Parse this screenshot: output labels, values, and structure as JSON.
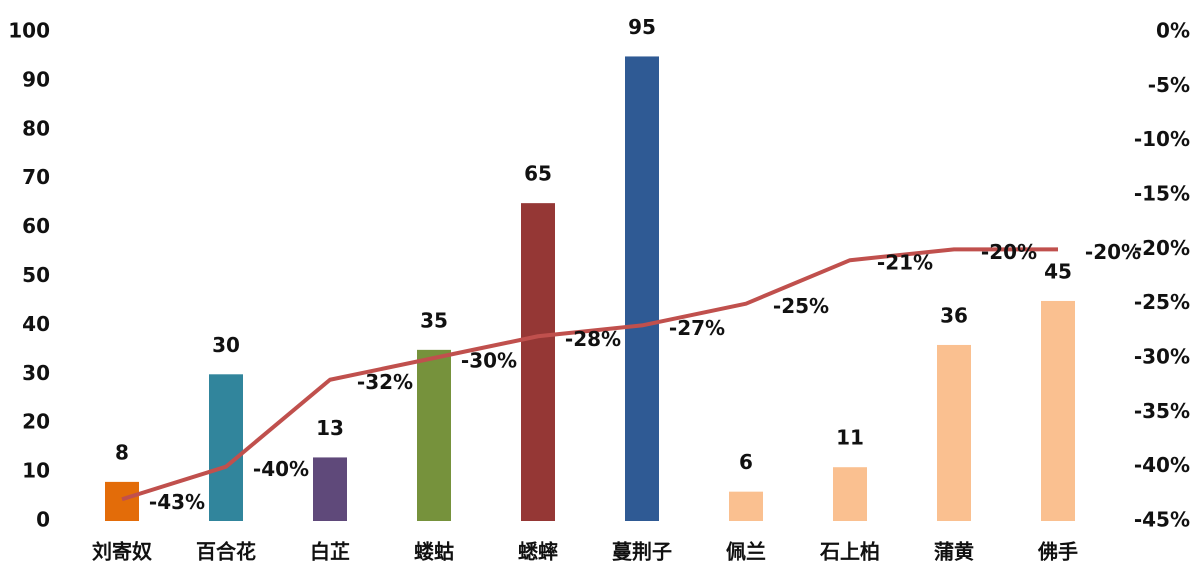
{
  "chart_data": {
    "type": "combo",
    "categories": [
      "刘寄奴",
      "百合花",
      "白芷",
      "蝼蛄",
      "蟋蟀",
      "蔓荆子",
      "佩兰",
      "石上柏",
      "蒲黄",
      "佛手"
    ],
    "ylim": [
      0,
      100
    ],
    "yticks": [
      0,
      10,
      20,
      30,
      40,
      50,
      60,
      70,
      80,
      90,
      100
    ],
    "y2lim": [
      -45,
      0
    ],
    "y2ticks": [
      {
        "value": 0,
        "label": "0%"
      },
      {
        "value": -5,
        "label": "-5%"
      },
      {
        "value": -10,
        "label": "-10%"
      },
      {
        "value": -15,
        "label": "-15%"
      },
      {
        "value": -20,
        "label": "-20%"
      },
      {
        "value": -25,
        "label": "-25%"
      },
      {
        "value": -30,
        "label": "-30%"
      },
      {
        "value": -35,
        "label": "-35%"
      },
      {
        "value": -40,
        "label": "-40%"
      },
      {
        "value": -45,
        "label": "-45%"
      }
    ],
    "grid": false,
    "series": [
      {
        "type": "bar",
        "colors": [
          "#e36c09",
          "#31859c",
          "#5f497a",
          "#76923c",
          "#953735",
          "#2f5a94",
          "#fac090",
          "#fac090",
          "#fac090",
          "#fac090"
        ],
        "values": [
          8,
          30,
          13,
          35,
          65,
          95,
          6,
          11,
          36,
          45
        ]
      },
      {
        "type": "line",
        "axis": "y2",
        "color": "#c0504d",
        "values": [
          -43,
          -40,
          -32,
          -30,
          -28,
          -27,
          -25,
          -21,
          -20,
          -20
        ],
        "value_labels": [
          "-43%",
          "-40%",
          "-32%",
          "-30%",
          "-28%",
          "-27%",
          "-25%",
          "-21%",
          "-20%",
          "-20%"
        ]
      }
    ]
  }
}
